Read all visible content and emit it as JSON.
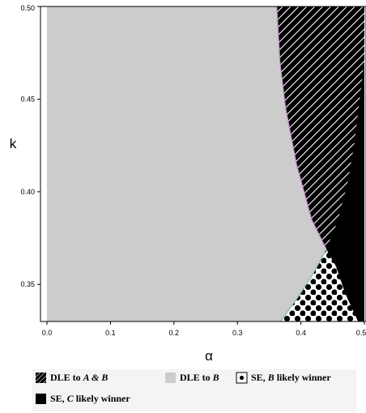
{
  "chart_data": {
    "type": "region-map",
    "xlabel": "α",
    "ylabel": "k",
    "xlim": [
      0,
      0.5
    ],
    "ylim": [
      0.33,
      0.5
    ],
    "x_ticks": [
      0.0,
      0.1,
      0.2,
      0.3,
      0.4,
      0.5
    ],
    "x_tick_labels": [
      "0.0",
      "0.1",
      "0.2",
      "0.3",
      "0.4",
      "0.5"
    ],
    "y_ticks": [
      0.35,
      0.4,
      0.45,
      0.5
    ],
    "y_tick_labels": [
      "0.35",
      "0.40",
      "0.45",
      "0.50"
    ],
    "regions": [
      {
        "key": "dle_b",
        "fill": "#cccccc",
        "pattern": "solid",
        "boundary": [
          [
            0,
            0.33
          ],
          [
            0,
            0.5
          ],
          [
            0.362,
            0.5
          ],
          [
            0.367,
            0.47
          ],
          [
            0.376,
            0.445
          ],
          [
            0.393,
            0.415
          ],
          [
            0.417,
            0.385
          ],
          [
            0.44,
            0.369
          ],
          [
            0.418,
            0.355
          ],
          [
            0.395,
            0.343
          ],
          [
            0.368,
            0.33
          ]
        ]
      },
      {
        "key": "dle_ab",
        "fill": "#000000",
        "pattern": "hatch",
        "boundary": [
          [
            0.362,
            0.5
          ],
          [
            0.5,
            0.5
          ],
          [
            0.5,
            0.47
          ],
          [
            0.493,
            0.45
          ],
          [
            0.484,
            0.425
          ],
          [
            0.474,
            0.405
          ],
          [
            0.458,
            0.384
          ],
          [
            0.44,
            0.369
          ],
          [
            0.417,
            0.385
          ],
          [
            0.393,
            0.415
          ],
          [
            0.376,
            0.445
          ],
          [
            0.367,
            0.47
          ]
        ]
      },
      {
        "key": "se_c",
        "fill": "#000000",
        "pattern": "solid",
        "boundary": [
          [
            0.44,
            0.369
          ],
          [
            0.458,
            0.384
          ],
          [
            0.474,
            0.405
          ],
          [
            0.484,
            0.425
          ],
          [
            0.493,
            0.45
          ],
          [
            0.5,
            0.47
          ],
          [
            0.5,
            0.33
          ],
          [
            0.49,
            0.33
          ],
          [
            0.47,
            0.345
          ],
          [
            0.455,
            0.36
          ]
        ]
      },
      {
        "key": "se_b",
        "fill": "#ffffff",
        "pattern": "dots",
        "boundary": [
          [
            0.44,
            0.369
          ],
          [
            0.455,
            0.36
          ],
          [
            0.47,
            0.345
          ],
          [
            0.49,
            0.33
          ],
          [
            0.368,
            0.33
          ],
          [
            0.395,
            0.343
          ],
          [
            0.418,
            0.355
          ]
        ]
      }
    ],
    "legend_position": "bottom",
    "legend": [
      {
        "key": "dle_ab",
        "pattern": "hatch",
        "text": "DLE to ",
        "italic": "A & B",
        "suffix": ""
      },
      {
        "key": "dle_b",
        "pattern": "solid-gray",
        "text": "DLE to ",
        "italic": "B",
        "suffix": ""
      },
      {
        "key": "se_b",
        "pattern": "dots",
        "text": "SE,  ",
        "italic": "B",
        "suffix": " likely  winner"
      },
      {
        "key": "se_c",
        "pattern": "solid-black",
        "text": "SE,  ",
        "italic": "C",
        "suffix": " likely  winner"
      }
    ],
    "grid": false
  },
  "colors": {
    "gray": "#cccccc",
    "black": "#000000",
    "boundary_pink": "#c088c8",
    "boundary_teal": "#7fb8a8"
  }
}
